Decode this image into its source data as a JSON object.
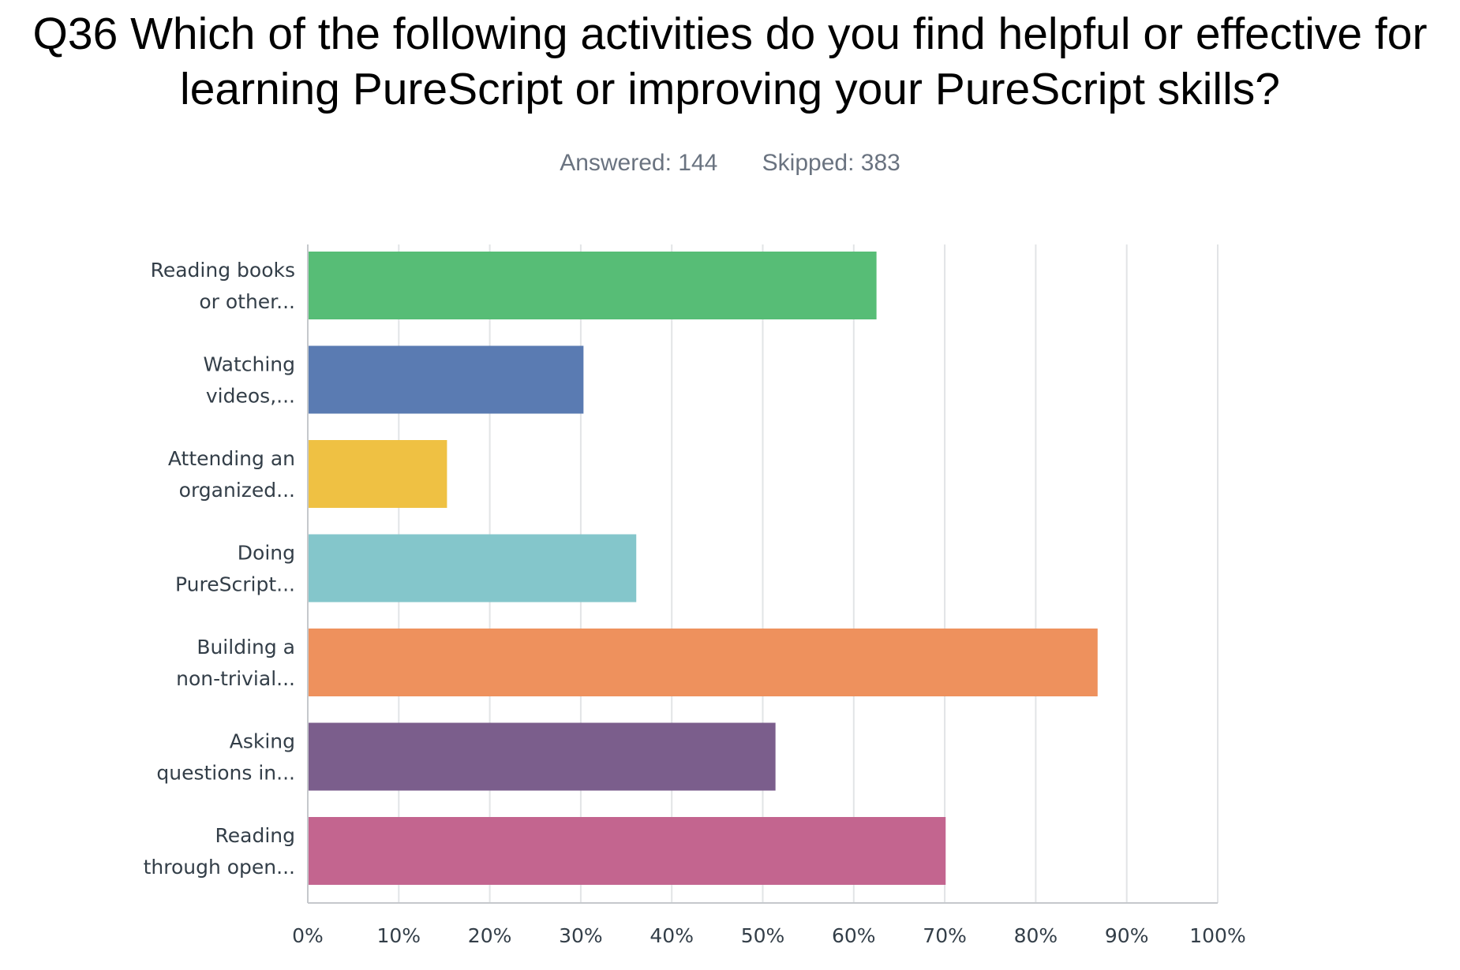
{
  "title": {
    "line1": "Q36 Which of the following activities do you find helpful or effective for",
    "line2": "learning PureScript or improving your PureScript skills?"
  },
  "stats": {
    "answered": "Answered: 144",
    "skipped": "Skipped: 383"
  },
  "chart_data": {
    "type": "bar",
    "orientation": "horizontal",
    "categories": [
      [
        "Reading books",
        "or other..."
      ],
      [
        "Watching",
        "videos,..."
      ],
      [
        "Attending an",
        "organized..."
      ],
      [
        "Doing",
        "PureScript..."
      ],
      [
        "Building a",
        "non-trivial..."
      ],
      [
        "Asking",
        "questions in..."
      ],
      [
        "Reading",
        "through open..."
      ]
    ],
    "values": [
      62.5,
      30.3,
      15.3,
      36.1,
      86.8,
      51.4,
      70.1
    ],
    "colors": [
      "#57bd76",
      "#5a7bb2",
      "#efc143",
      "#84c6cb",
      "#ee915d",
      "#7b5e8c",
      "#c3658f"
    ],
    "xlim": [
      0,
      100
    ],
    "xticks": [
      "0%",
      "10%",
      "20%",
      "30%",
      "40%",
      "50%",
      "60%",
      "70%",
      "80%",
      "90%",
      "100%"
    ],
    "grid": true
  }
}
